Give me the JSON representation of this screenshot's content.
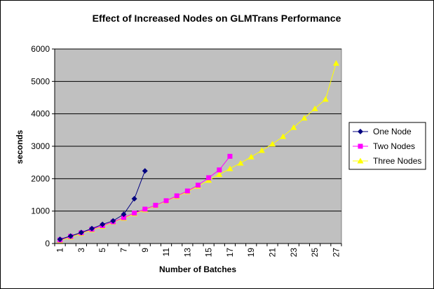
{
  "chart_data": {
    "type": "line",
    "title": "Effect of Increased Nodes on GLMTrans Performance",
    "xlabel": "Number of Batches",
    "ylabel": "seconds",
    "x_ticks": [
      "1",
      "3",
      "5",
      "7",
      "9",
      "11",
      "13",
      "15",
      "17",
      "19",
      "21",
      "23",
      "25",
      "27"
    ],
    "ylim": [
      0,
      6000
    ],
    "y_ticks": [
      "0",
      "1000",
      "2000",
      "3000",
      "4000",
      "5000",
      "6000"
    ],
    "grid": true,
    "legend_position": "right",
    "plot_background": "#c0c0c0",
    "series": [
      {
        "name": "One Node",
        "color": "#000080",
        "marker": "diamond",
        "x": [
          1,
          2,
          3,
          4,
          5,
          6,
          7,
          8,
          9
        ],
        "y": [
          130,
          230,
          340,
          460,
          590,
          700,
          900,
          1380,
          2240
        ]
      },
      {
        "name": "Two Nodes",
        "color": "#ff00ff",
        "marker": "square",
        "x": [
          1,
          2,
          3,
          4,
          5,
          6,
          7,
          8,
          9,
          10,
          11,
          12,
          13,
          14,
          15,
          16,
          17
        ],
        "y": [
          110,
          220,
          330,
          440,
          550,
          670,
          800,
          940,
          1060,
          1180,
          1320,
          1470,
          1620,
          1800,
          2030,
          2270,
          2690
        ]
      },
      {
        "name": "Three Nodes",
        "color": "#ffff00",
        "marker": "triangle",
        "x": [
          1,
          2,
          3,
          4,
          5,
          6,
          7,
          8,
          9,
          10,
          11,
          12,
          13,
          14,
          15,
          16,
          17,
          18,
          19,
          20,
          21,
          22,
          23,
          24,
          25,
          26,
          27
        ],
        "y": [
          90,
          200,
          310,
          420,
          530,
          660,
          780,
          920,
          1040,
          1170,
          1310,
          1450,
          1600,
          1770,
          1950,
          2130,
          2310,
          2480,
          2670,
          2870,
          3070,
          3300,
          3580,
          3870,
          4160,
          4450,
          5560
        ]
      }
    ]
  }
}
